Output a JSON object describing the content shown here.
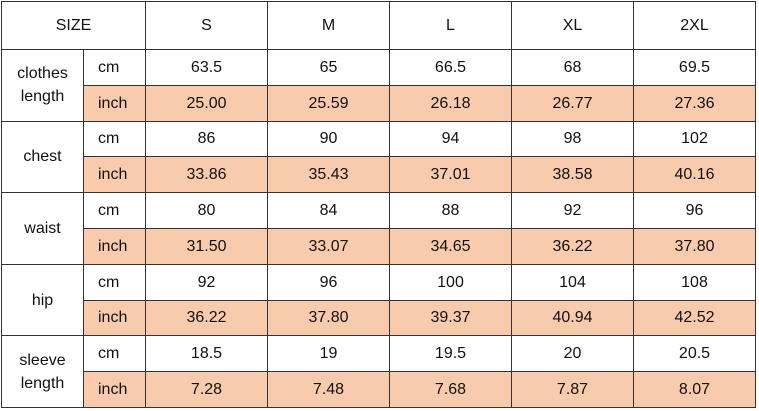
{
  "table": {
    "header": [
      "SIZE",
      "S",
      "M",
      "L",
      "XL",
      "2XL"
    ],
    "rows": [
      {
        "label": "clothes length",
        "units": [
          {
            "unit": "cm",
            "values": [
              "63.5",
              "65",
              "66.5",
              "68",
              "69.5"
            ]
          },
          {
            "unit": "inch",
            "values": [
              "25.00",
              "25.59",
              "26.18",
              "26.77",
              "27.36"
            ]
          }
        ]
      },
      {
        "label": "chest",
        "units": [
          {
            "unit": "cm",
            "values": [
              "86",
              "90",
              "94",
              "98",
              "102"
            ]
          },
          {
            "unit": "inch",
            "values": [
              "33.86",
              "35.43",
              "37.01",
              "38.58",
              "40.16"
            ]
          }
        ]
      },
      {
        "label": "waist",
        "units": [
          {
            "unit": "cm",
            "values": [
              "80",
              "84",
              "88",
              "92",
              "96"
            ]
          },
          {
            "unit": "inch",
            "values": [
              "31.50",
              "33.07",
              "34.65",
              "36.22",
              "37.80"
            ]
          }
        ]
      },
      {
        "label": "hip",
        "units": [
          {
            "unit": "cm",
            "values": [
              "92",
              "96",
              "100",
              "104",
              "108"
            ]
          },
          {
            "unit": "inch",
            "values": [
              "36.22",
              "37.80",
              "39.37",
              "40.94",
              "42.52"
            ]
          }
        ]
      },
      {
        "label": "sleeve length",
        "units": [
          {
            "unit": "cm",
            "values": [
              "18.5",
              "19",
              "19.5",
              "20",
              "20.5"
            ]
          },
          {
            "unit": "inch",
            "values": [
              "7.28",
              "7.48",
              "7.68",
              "7.87",
              "8.07"
            ]
          }
        ]
      }
    ]
  }
}
